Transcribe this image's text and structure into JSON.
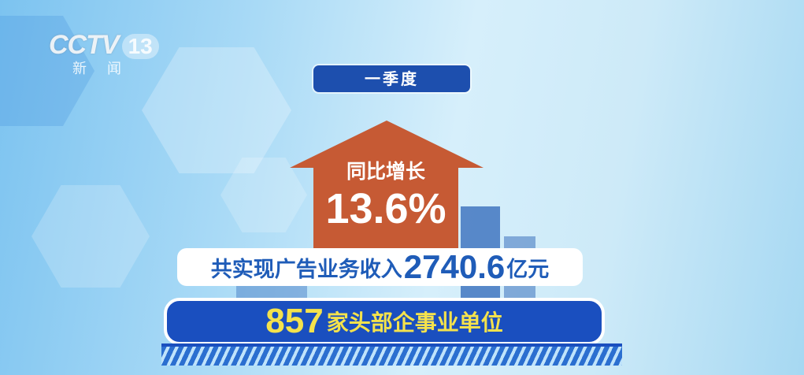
{
  "logo": {
    "brand": "CCTV",
    "channel": "13",
    "subtitle": "新闻"
  },
  "period_label": "一季度",
  "growth": {
    "label": "同比增长",
    "value": "13.6%"
  },
  "revenue": {
    "prefix": "共实现广告业务收入",
    "value": "2740.6",
    "unit": "亿元"
  },
  "entities": {
    "count": "857",
    "label": "家头部企事业单位"
  },
  "colors": {
    "arrow": "#c65a34",
    "pill": "#1d4fae",
    "bar": "#1a4fbf",
    "highlight": "#f4e24c",
    "revenue_text": "#1f5cb8"
  }
}
